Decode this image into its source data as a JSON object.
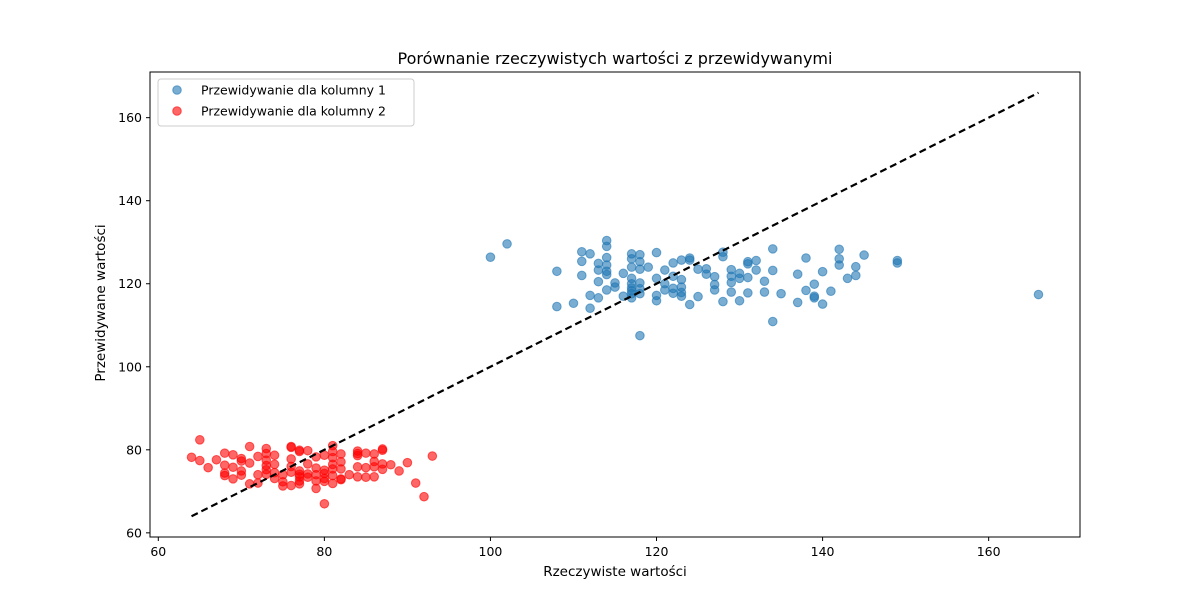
{
  "chart_data": {
    "type": "scatter",
    "title": "Porównanie rzeczywistych wartości z przewidywanymi",
    "xlabel": "Rzeczywiste wartości",
    "ylabel": "Przewidywane wartości",
    "xlim": [
      59,
      171
    ],
    "ylim": [
      59,
      171
    ],
    "xticks": [
      60,
      80,
      100,
      120,
      140,
      160
    ],
    "yticks": [
      60,
      80,
      100,
      120,
      140,
      160
    ],
    "grid": false,
    "legend_position": "top-left",
    "series": [
      {
        "name": "Przewidywanie dla kolumny 1",
        "color": "#1f77b4",
        "alpha": 0.6,
        "points": [
          [
            100,
            126.4
          ],
          [
            102,
            129.6
          ],
          [
            108,
            123.0
          ],
          [
            108,
            114.5
          ],
          [
            110,
            115.3
          ],
          [
            111,
            127.7
          ],
          [
            111,
            125.4
          ],
          [
            111,
            122.0
          ],
          [
            112,
            127.2
          ],
          [
            112,
            117.2
          ],
          [
            112,
            114.1
          ],
          [
            113,
            124.9
          ],
          [
            113,
            123.3
          ],
          [
            113,
            120.5
          ],
          [
            113,
            116.6
          ],
          [
            114,
            130.4
          ],
          [
            114,
            129.0
          ],
          [
            114,
            126.3
          ],
          [
            114,
            124.5
          ],
          [
            114,
            123.0
          ],
          [
            114,
            122.2
          ],
          [
            114,
            118.5
          ],
          [
            115,
            120.2
          ],
          [
            115,
            119.2
          ],
          [
            116,
            122.5
          ],
          [
            116,
            117.0
          ],
          [
            117,
            127.2
          ],
          [
            117,
            126.0
          ],
          [
            117,
            124.0
          ],
          [
            117,
            121.3
          ],
          [
            117,
            120.0
          ],
          [
            117,
            119.0
          ],
          [
            117,
            118.3
          ],
          [
            117,
            117.6
          ],
          [
            117,
            116.6
          ],
          [
            118,
            127.0
          ],
          [
            118,
            125.3
          ],
          [
            118,
            123.5
          ],
          [
            118,
            120.2
          ],
          [
            118,
            118.8
          ],
          [
            118,
            117.6
          ],
          [
            118,
            107.5
          ],
          [
            119,
            124.0
          ],
          [
            120,
            127.5
          ],
          [
            120,
            121.3
          ],
          [
            120,
            117.2
          ],
          [
            120,
            115.9
          ],
          [
            121,
            123.3
          ],
          [
            121,
            120.0
          ],
          [
            121,
            118.5
          ],
          [
            122,
            125.0
          ],
          [
            122,
            121.8
          ],
          [
            122,
            118.9
          ],
          [
            122,
            117.7
          ],
          [
            123,
            125.7
          ],
          [
            123,
            121.0
          ],
          [
            123,
            119.2
          ],
          [
            123,
            117.9
          ],
          [
            123,
            117.0
          ],
          [
            124,
            126.2
          ],
          [
            124,
            125.7
          ],
          [
            124,
            115.0
          ],
          [
            125,
            123.5
          ],
          [
            125,
            116.9
          ],
          [
            126,
            123.6
          ],
          [
            126,
            122.3
          ],
          [
            127,
            121.7
          ],
          [
            127,
            119.8
          ],
          [
            127,
            118.5
          ],
          [
            128,
            127.6
          ],
          [
            128,
            126.5
          ],
          [
            128,
            115.7
          ],
          [
            129,
            123.4
          ],
          [
            129,
            121.8
          ],
          [
            129,
            120.3
          ],
          [
            129,
            118.0
          ],
          [
            130,
            122.5
          ],
          [
            130,
            121.3
          ],
          [
            130,
            115.9
          ],
          [
            131,
            125.3
          ],
          [
            131,
            124.8
          ],
          [
            131,
            121.5
          ],
          [
            131,
            117.8
          ],
          [
            132,
            125.6
          ],
          [
            132,
            123.3
          ],
          [
            133,
            120.6
          ],
          [
            133,
            118.0
          ],
          [
            134,
            128.4
          ],
          [
            134,
            123.2
          ],
          [
            134,
            110.9
          ],
          [
            135,
            117.6
          ],
          [
            137,
            122.3
          ],
          [
            137,
            115.5
          ],
          [
            138,
            126.2
          ],
          [
            138,
            118.4
          ],
          [
            139,
            119.9
          ],
          [
            139,
            117.0
          ],
          [
            139,
            116.6
          ],
          [
            140,
            122.9
          ],
          [
            140,
            115.1
          ],
          [
            141,
            118.2
          ],
          [
            142,
            128.3
          ],
          [
            142,
            126.0
          ],
          [
            142,
            124.5
          ],
          [
            143,
            121.3
          ],
          [
            144,
            124.1
          ],
          [
            144,
            122.0
          ],
          [
            145,
            126.9
          ],
          [
            149,
            125.6
          ],
          [
            149,
            125.0
          ],
          [
            166,
            117.4
          ]
        ]
      },
      {
        "name": "Przewidywanie dla kolumny 2",
        "color": "#ff0000",
        "alpha": 0.6,
        "points": [
          [
            64,
            78.2
          ],
          [
            65,
            82.4
          ],
          [
            65,
            77.4
          ],
          [
            66,
            75.7
          ],
          [
            67,
            77.6
          ],
          [
            68,
            79.2
          ],
          [
            68,
            76.3
          ],
          [
            68,
            74.4
          ],
          [
            68,
            73.8
          ],
          [
            69,
            78.8
          ],
          [
            69,
            75.8
          ],
          [
            69,
            73.0
          ],
          [
            70,
            77.9
          ],
          [
            70,
            77.3
          ],
          [
            70,
            74.9
          ],
          [
            70,
            73.9
          ],
          [
            71,
            80.8
          ],
          [
            71,
            76.8
          ],
          [
            71,
            71.8
          ],
          [
            72,
            78.4
          ],
          [
            72,
            74.0
          ],
          [
            72,
            72.0
          ],
          [
            73,
            80.3
          ],
          [
            73,
            79.1
          ],
          [
            73,
            77.5
          ],
          [
            73,
            76.2
          ],
          [
            73,
            75.2
          ],
          [
            73,
            74.1
          ],
          [
            74,
            78.7
          ],
          [
            74,
            76.5
          ],
          [
            74,
            74.5
          ],
          [
            74,
            73.1
          ],
          [
            75,
            74.0
          ],
          [
            75,
            72.3
          ],
          [
            75,
            71.3
          ],
          [
            76,
            80.8
          ],
          [
            76,
            80.6
          ],
          [
            76,
            77.8
          ],
          [
            76,
            76.0
          ],
          [
            76,
            74.6
          ],
          [
            76,
            71.4
          ],
          [
            77,
            79.9
          ],
          [
            77,
            79.6
          ],
          [
            77,
            74.9
          ],
          [
            77,
            74.1
          ],
          [
            77,
            73.5
          ],
          [
            77,
            72.5
          ],
          [
            77,
            71.8
          ],
          [
            78,
            79.8
          ],
          [
            78,
            76.6
          ],
          [
            78,
            74.2
          ],
          [
            78,
            73.4
          ],
          [
            79,
            78.3
          ],
          [
            79,
            75.6
          ],
          [
            79,
            74.0
          ],
          [
            79,
            72.5
          ],
          [
            79,
            70.7
          ],
          [
            80,
            78.7
          ],
          [
            80,
            75.1
          ],
          [
            80,
            74.3
          ],
          [
            80,
            73.1
          ],
          [
            80,
            72.4
          ],
          [
            80,
            67.0
          ],
          [
            81,
            81.0
          ],
          [
            81,
            79.6
          ],
          [
            81,
            78.1
          ],
          [
            81,
            76.5
          ],
          [
            81,
            75.4
          ],
          [
            81,
            73.8
          ],
          [
            81,
            71.9
          ],
          [
            82,
            79.0
          ],
          [
            82,
            77.1
          ],
          [
            82,
            75.4
          ],
          [
            82,
            73.0
          ],
          [
            82,
            72.8
          ],
          [
            83,
            74.0
          ],
          [
            84,
            79.7
          ],
          [
            84,
            79.1
          ],
          [
            84,
            78.6
          ],
          [
            84,
            75.9
          ],
          [
            84,
            73.5
          ],
          [
            85,
            79.2
          ],
          [
            85,
            75.7
          ],
          [
            85,
            73.4
          ],
          [
            86,
            79.0
          ],
          [
            86,
            77.2
          ],
          [
            86,
            75.9
          ],
          [
            86,
            73.5
          ],
          [
            87,
            80.2
          ],
          [
            87,
            79.9
          ],
          [
            87,
            76.6
          ],
          [
            87,
            75.3
          ],
          [
            88,
            76.4
          ],
          [
            89,
            74.9
          ],
          [
            90,
            76.9
          ],
          [
            91,
            72.0
          ],
          [
            92,
            68.7
          ],
          [
            93,
            78.5
          ]
        ]
      },
      {
        "type": "line",
        "style": "dashed",
        "color": "#000000",
        "points": [
          [
            64,
            64
          ],
          [
            166,
            166
          ]
        ]
      }
    ]
  }
}
